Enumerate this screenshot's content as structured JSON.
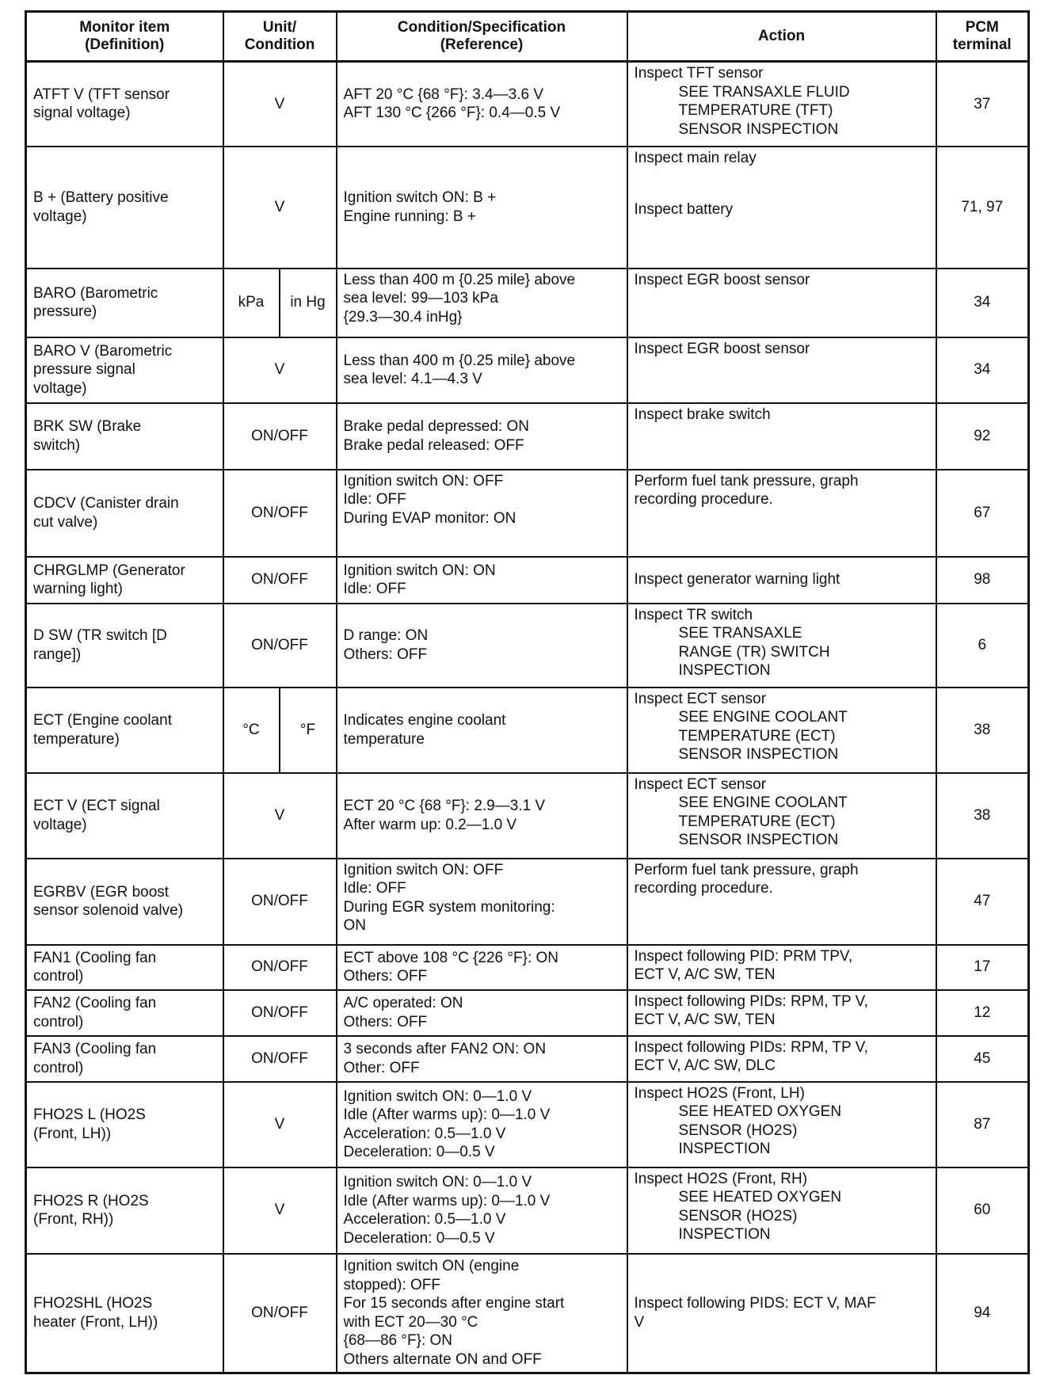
{
  "headers": {
    "item": [
      "Monitor item",
      "(Definition)"
    ],
    "unit": [
      "Unit/",
      "Condition"
    ],
    "condition": [
      "Condition/Specification",
      "(Reference)"
    ],
    "action": [
      "Action"
    ],
    "terminal": [
      "PCM",
      "terminal"
    ]
  },
  "rows": [
    {
      "item": [
        "ATFT V (TFT sensor",
        "signal voltage)"
      ],
      "unit": [
        "V"
      ],
      "condition": [
        "AFT 20 °C {68 °F}: 3.4—3.6 V",
        "AFT 130 °C {266 °F}: 0.4—0.5 V"
      ],
      "action": [
        {
          "text": "Inspect TFT sensor"
        },
        {
          "text": "SEE TRANSAXLE FLUID",
          "indent": true
        },
        {
          "text": "TEMPERATURE (TFT)",
          "indent": true
        },
        {
          "text": "SENSOR INSPECTION",
          "indent": true
        }
      ],
      "terminal": "37"
    },
    {
      "item": [
        "B + (Battery positive",
        "voltage)"
      ],
      "unit": [
        "V"
      ],
      "condition": [
        "Ignition switch ON: B +",
        "Engine running: B +"
      ],
      "action": [
        {
          "text": "Inspect main relay"
        },
        {
          "text": ""
        },
        {
          "text": ""
        },
        {
          "text": "Inspect battery"
        }
      ],
      "terminal": "71, 97"
    },
    {
      "item": [
        "BARO (Barometric",
        "pressure)"
      ],
      "unit": [
        "kPa",
        "in Hg"
      ],
      "condition": [
        "Less than 400 m {0.25 mile} above",
        "sea level: 99—103 kPa",
        "{29.3—30.4 inHg}"
      ],
      "action": [
        {
          "text": "Inspect EGR boost sensor"
        }
      ],
      "terminal": "34"
    },
    {
      "item": [
        "BARO V (Barometric",
        "pressure signal",
        "voltage)"
      ],
      "unit": [
        "V"
      ],
      "condition": [
        "Less than 400 m {0.25 mile} above",
        "sea level: 4.1—4.3 V"
      ],
      "action": [
        {
          "text": "Inspect EGR boost sensor"
        }
      ],
      "terminal": "34"
    },
    {
      "item": [
        "BRK SW (Brake",
        "switch)"
      ],
      "unit": [
        "ON/OFF"
      ],
      "condition": [
        "Brake pedal depressed: ON",
        "Brake pedal released: OFF"
      ],
      "action": [
        {
          "text": "Inspect brake switch"
        }
      ],
      "terminal": "92"
    },
    {
      "item": [
        "CDCV (Canister drain",
        "cut valve)"
      ],
      "unit": [
        "ON/OFF"
      ],
      "condition": [
        "Ignition switch ON: OFF",
        "Idle: OFF",
        "During EVAP monitor: ON"
      ],
      "action": [
        {
          "text": "Perform fuel tank pressure, graph"
        },
        {
          "text": "recording procedure."
        }
      ],
      "terminal": "67"
    },
    {
      "item": [
        "CHRGLMP (Generator",
        "warning light)"
      ],
      "unit": [
        "ON/OFF"
      ],
      "condition": [
        "Ignition switch ON: ON",
        "Idle: OFF"
      ],
      "action": [
        {
          "text": "Inspect generator warning light"
        }
      ],
      "terminal": "98"
    },
    {
      "item": [
        "D SW (TR switch [D",
        "range])"
      ],
      "unit": [
        "ON/OFF"
      ],
      "condition": [
        "D range: ON",
        "Others: OFF"
      ],
      "action": [
        {
          "text": "Inspect TR switch"
        },
        {
          "text": "SEE TRANSAXLE",
          "indent": true
        },
        {
          "text": "RANGE (TR) SWITCH",
          "indent": true
        },
        {
          "text": "INSPECTION",
          "indent": true
        }
      ],
      "terminal": "6"
    },
    {
      "item": [
        "ECT (Engine coolant",
        "temperature)"
      ],
      "unit": [
        "°C",
        "°F"
      ],
      "condition": [
        "Indicates engine coolant",
        "temperature"
      ],
      "action": [
        {
          "text": "Inspect ECT sensor"
        },
        {
          "text": "SEE ENGINE COOLANT",
          "indent": true
        },
        {
          "text": "TEMPERATURE (ECT)",
          "indent": true
        },
        {
          "text": "SENSOR INSPECTION",
          "indent": true
        }
      ],
      "terminal": "38"
    },
    {
      "item": [
        "ECT V (ECT signal",
        "voltage)"
      ],
      "unit": [
        "V"
      ],
      "condition": [
        "ECT 20 °C {68 °F}: 2.9—3.1 V",
        "After warm up: 0.2—1.0 V"
      ],
      "action": [
        {
          "text": "Inspect ECT sensor"
        },
        {
          "text": "SEE ENGINE COOLANT",
          "indent": true
        },
        {
          "text": "TEMPERATURE (ECT)",
          "indent": true
        },
        {
          "text": "SENSOR INSPECTION",
          "indent": true
        }
      ],
      "terminal": "38"
    },
    {
      "item": [
        "EGRBV (EGR boost",
        "sensor solenoid valve)"
      ],
      "unit": [
        "ON/OFF"
      ],
      "condition": [
        "Ignition switch ON: OFF",
        "Idle: OFF",
        "During EGR system monitoring:",
        "ON"
      ],
      "action": [
        {
          "text": "Perform fuel tank pressure, graph"
        },
        {
          "text": "recording procedure."
        }
      ],
      "terminal": "47"
    },
    {
      "item": [
        "FAN1 (Cooling fan",
        "control)"
      ],
      "unit": [
        "ON/OFF"
      ],
      "condition": [
        "ECT above 108 °C {226 °F}: ON",
        "Others: OFF"
      ],
      "action": [
        {
          "text": "Inspect following PID: PRM TPV,"
        },
        {
          "text": "ECT V, A/C SW, TEN"
        }
      ],
      "terminal": "17"
    },
    {
      "item": [
        "FAN2 (Cooling fan",
        "control)"
      ],
      "unit": [
        "ON/OFF"
      ],
      "condition": [
        "A/C operated: ON",
        "Others: OFF"
      ],
      "action": [
        {
          "text": "Inspect following PIDs: RPM, TP V,"
        },
        {
          "text": "ECT V, A/C SW, TEN"
        }
      ],
      "terminal": "12"
    },
    {
      "item": [
        "FAN3 (Cooling fan",
        "control)"
      ],
      "unit": [
        "ON/OFF"
      ],
      "condition": [
        "3 seconds after FAN2 ON: ON",
        "Other: OFF"
      ],
      "action": [
        {
          "text": "Inspect following PIDs: RPM, TP V,"
        },
        {
          "text": "ECT V, A/C SW, DLC"
        }
      ],
      "terminal": "45"
    },
    {
      "item": [
        "FHO2S L (HO2S",
        "(Front, LH))"
      ],
      "unit": [
        "V"
      ],
      "condition": [
        "Ignition switch ON: 0—1.0 V",
        "Idle (After warms up): 0—1.0 V",
        "Acceleration: 0.5—1.0 V",
        "Deceleration: 0—0.5 V"
      ],
      "action": [
        {
          "text": "Inspect HO2S (Front, LH)"
        },
        {
          "text": "SEE HEATED OXYGEN",
          "indent": true
        },
        {
          "text": "SENSOR (HO2S)",
          "indent": true
        },
        {
          "text": "INSPECTION",
          "indent": true
        }
      ],
      "terminal": "87"
    },
    {
      "item": [
        "FHO2S R (HO2S",
        "(Front, RH))"
      ],
      "unit": [
        "V"
      ],
      "condition": [
        "Ignition switch ON: 0—1.0 V",
        "Idle (After warms up): 0—1.0 V",
        "Acceleration: 0.5—1.0 V",
        "Deceleration: 0—0.5 V"
      ],
      "action": [
        {
          "text": "Inspect HO2S (Front, RH)"
        },
        {
          "text": "SEE HEATED OXYGEN",
          "indent": true
        },
        {
          "text": "SENSOR (HO2S)",
          "indent": true
        },
        {
          "text": "INSPECTION",
          "indent": true
        }
      ],
      "terminal": "60"
    },
    {
      "item": [
        "FHO2SHL (HO2S",
        "heater (Front, LH))"
      ],
      "unit": [
        "ON/OFF"
      ],
      "condition": [
        "Ignition switch ON (engine",
        "stopped): OFF",
        "For 15 seconds after engine start",
        "with ECT 20—30 °C",
        "{68—86 °F}: ON",
        "Others alternate ON and OFF"
      ],
      "action": [
        {
          "text": "Inspect following PIDS: ECT V, MAF"
        },
        {
          "text": "V"
        }
      ],
      "terminal": "94"
    }
  ]
}
